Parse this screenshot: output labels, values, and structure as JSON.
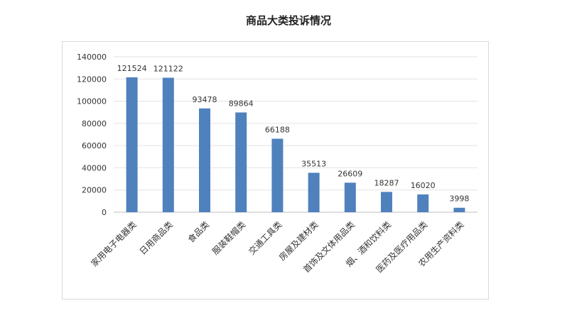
{
  "chart_data": {
    "type": "bar",
    "title": "商品大类投诉情况",
    "xlabel": "",
    "ylabel": "",
    "categories": [
      "家用电子电器类",
      "日用商品类",
      "食品类",
      "服装鞋帽类",
      "交通工具类",
      "房屋及建材类",
      "首饰及文体用品类",
      "烟、酒和饮料类",
      "医药及医疗用品类",
      "农用生产资料类"
    ],
    "values": [
      121524,
      121122,
      93478,
      89864,
      66188,
      35513,
      26609,
      18287,
      16020,
      3998
    ],
    "ylim": [
      0,
      140000
    ],
    "yticks": [
      "0",
      "20000",
      "40000",
      "60000",
      "80000",
      "100000",
      "120000",
      "140000"
    ],
    "grid": true,
    "legend": "none",
    "bar_color": "#4f81bd"
  }
}
